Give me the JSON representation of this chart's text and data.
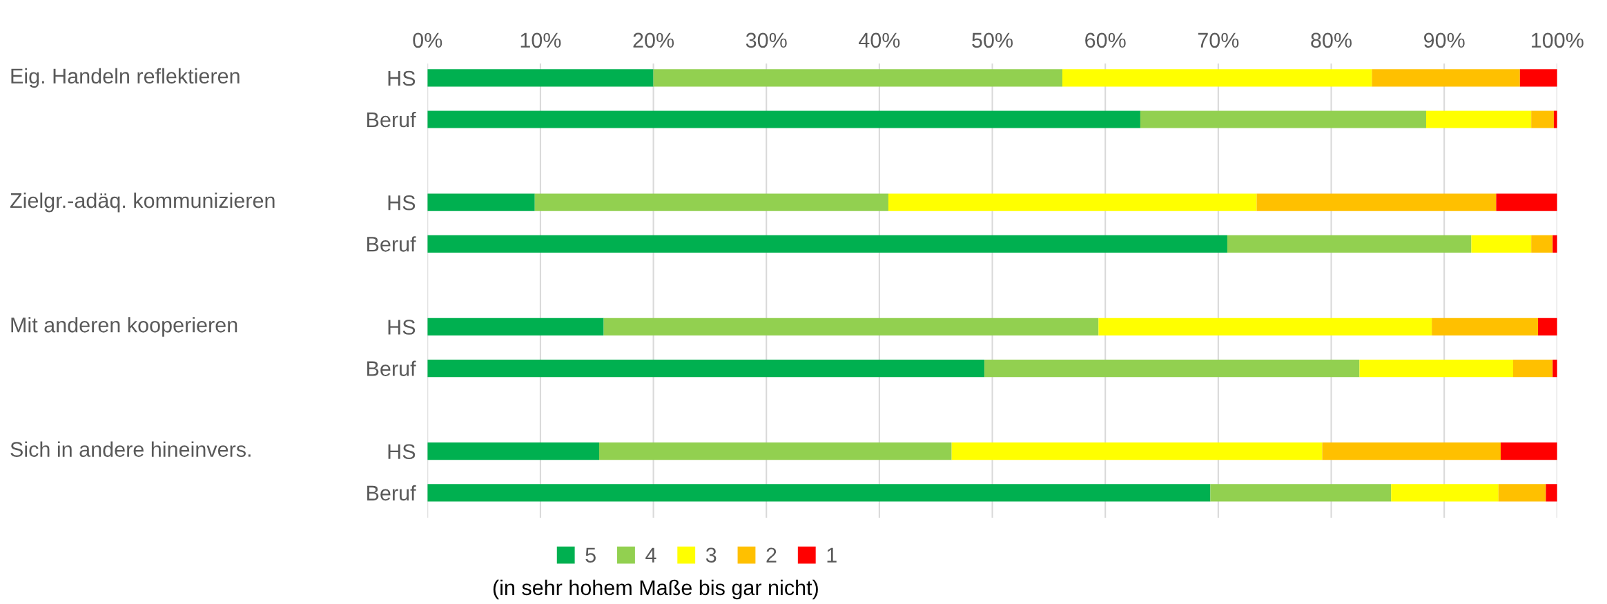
{
  "chart_data": {
    "type": "bar",
    "orientation": "horizontal",
    "stacked": true,
    "categories": [
      "HS",
      "Beruf",
      null,
      "HS",
      "Beruf",
      null,
      "HS",
      "Beruf",
      null,
      "HS",
      "Beruf"
    ],
    "series": [
      {
        "name": "5",
        "color": "#00b050",
        "values": [
          20.0,
          63.1,
          null,
          9.5,
          70.8,
          null,
          15.6,
          49.3,
          null,
          15.2,
          69.3
        ]
      },
      {
        "name": "4",
        "color": "#92d050",
        "values": [
          36.2,
          25.3,
          null,
          31.3,
          21.6,
          null,
          43.8,
          33.2,
          null,
          31.2,
          16.0
        ]
      },
      {
        "name": "3",
        "color": "#ffff00",
        "values": [
          27.4,
          9.3,
          null,
          32.6,
          5.3,
          null,
          29.5,
          13.6,
          null,
          32.8,
          9.5
        ]
      },
      {
        "name": "2",
        "color": "#ffc000",
        "values": [
          13.1,
          2.0,
          null,
          21.2,
          1.9,
          null,
          9.4,
          3.5,
          null,
          15.8,
          4.2
        ]
      },
      {
        "name": "1",
        "color": "#ff0000",
        "values": [
          3.3,
          0.3,
          null,
          5.4,
          0.4,
          null,
          1.7,
          0.4,
          null,
          5.0,
          1.0
        ]
      }
    ],
    "xlim": [
      0,
      100
    ],
    "xticks": [
      {
        "value": 0,
        "label": "0%"
      },
      {
        "value": 10,
        "label": "10%"
      },
      {
        "value": 20,
        "label": "20%"
      },
      {
        "value": 30,
        "label": "30%"
      },
      {
        "value": 40,
        "label": "40%"
      },
      {
        "value": 50,
        "label": "50%"
      },
      {
        "value": 60,
        "label": "60%"
      },
      {
        "value": 70,
        "label": "70%"
      },
      {
        "value": 80,
        "label": "80%"
      },
      {
        "value": 90,
        "label": "90%"
      },
      {
        "value": 100,
        "label": "100%"
      }
    ],
    "grid": "x",
    "legend": "bottom",
    "xlabel": "(in sehr hohem Maße bis gar nicht)",
    "annotations": [
      "Eig. Handeln reflektieren",
      "Zielgr.-adäq. kommunizieren",
      "Mit anderen kooperieren",
      "Sich in andere hineinvers."
    ]
  }
}
